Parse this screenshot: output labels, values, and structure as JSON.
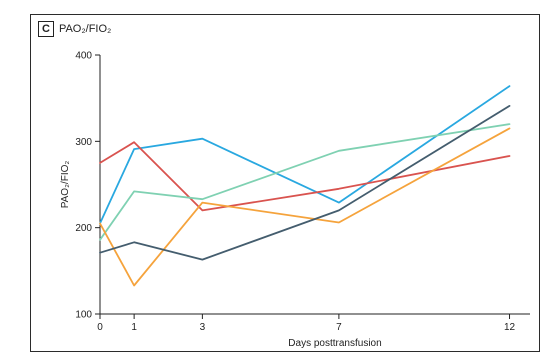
{
  "panel": {
    "letter": "C",
    "title": "PAO₂/FIO₂"
  },
  "chart_data": {
    "type": "line",
    "title": "PAO₂/FIO₂",
    "xlabel": "Days posttransfusion",
    "ylabel": "PAO₂/FIO₂",
    "xlim": [
      0,
      12.6
    ],
    "ylim": [
      100,
      400
    ],
    "xticks": [
      0,
      1,
      3,
      7,
      12
    ],
    "yticks": [
      100,
      200,
      300,
      400
    ],
    "series": [
      {
        "color": "#29a8e0",
        "x": [
          0,
          1,
          3,
          7,
          12
        ],
        "y": [
          205,
          291,
          303,
          229,
          364
        ]
      },
      {
        "color": "#d9534f",
        "x": [
          0,
          1,
          3,
          7,
          12
        ],
        "y": [
          275,
          299,
          220,
          245,
          283
        ]
      },
      {
        "color": "#7fd1b2",
        "x": [
          0,
          1,
          3,
          7,
          12
        ],
        "y": [
          186,
          242,
          233,
          289,
          320
        ]
      },
      {
        "color": "#f5a33c",
        "x": [
          0,
          1,
          3,
          7,
          12
        ],
        "y": [
          205,
          133,
          229,
          206,
          315
        ]
      },
      {
        "color": "#445d6e",
        "x": [
          0,
          1,
          3,
          7,
          12
        ],
        "y": [
          171,
          183,
          163,
          220,
          341
        ]
      }
    ]
  }
}
